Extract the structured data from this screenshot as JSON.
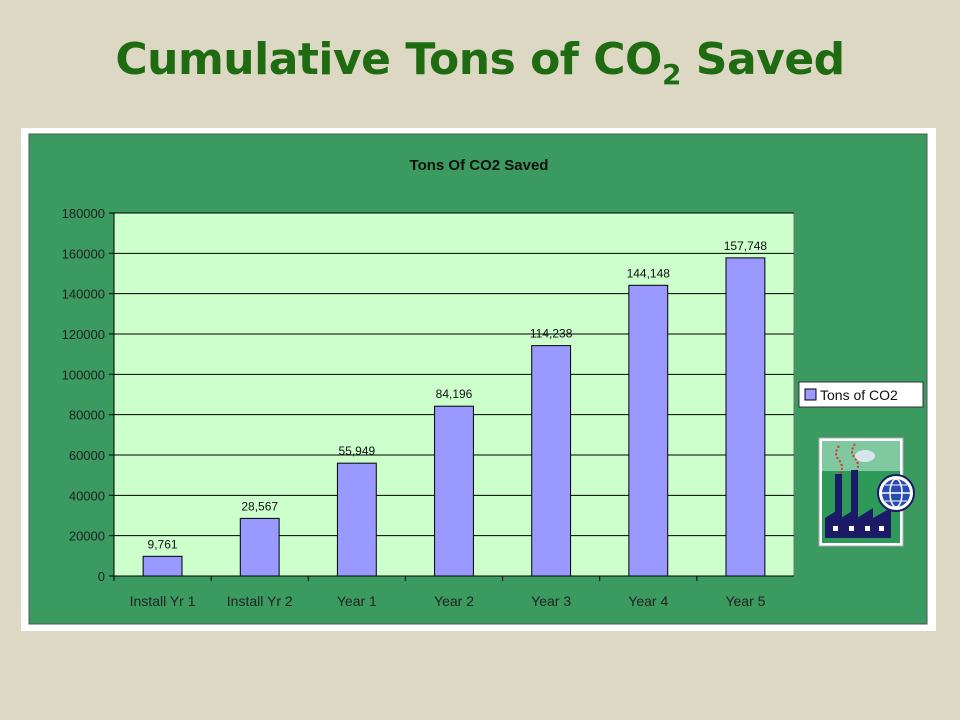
{
  "slide": {
    "title_main": "Cumulative Tons of CO",
    "title_sub": "2",
    "title_end": " Saved"
  },
  "colors": {
    "background": "#ddd8c4",
    "title": "#1e6b12",
    "chart_area": "#3a9a5f",
    "plot_area": "#ccffcc",
    "bar_fill": "#9999ff",
    "bar_stroke": "#000000"
  },
  "icons": [
    "factory-smokestack-globe-icon"
  ],
  "chart_data": {
    "type": "bar",
    "title": "Tons Of CO2 Saved",
    "categories": [
      "Install Yr 1",
      "Install Yr 2",
      "Year 1",
      "Year 2",
      "Year 3",
      "Year 4",
      "Year 5"
    ],
    "series": [
      {
        "name": "Tons of CO2",
        "values": [
          9761,
          28567,
          55949,
          84196,
          114238,
          144148,
          157748
        ],
        "labels": [
          "9,761",
          "28,567",
          "55,949",
          "84,196",
          "114,238",
          "144,148",
          "157,748"
        ]
      }
    ],
    "yticks": [
      "0",
      "20000",
      "40000",
      "60000",
      "80000",
      "100000",
      "120000",
      "140000",
      "160000",
      "180000"
    ],
    "ylim": [
      0,
      180000
    ],
    "grid": true,
    "legend_position": "right"
  }
}
